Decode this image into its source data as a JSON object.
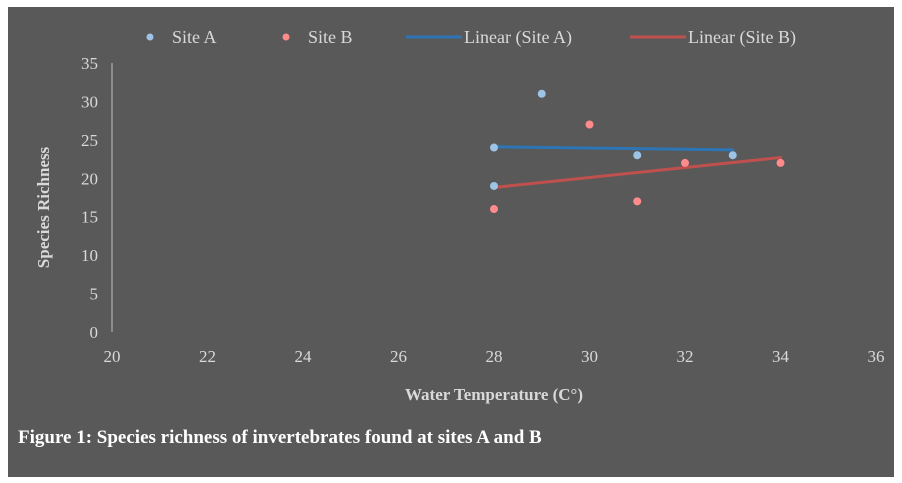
{
  "caption": "Figure 1: Species richness of invertebrates found at sites A and B",
  "chart_data": {
    "type": "scatter",
    "xlabel": "Water Temperature (C°)",
    "ylabel": "Species Richness",
    "xlim": [
      20,
      36
    ],
    "ylim": [
      0,
      35
    ],
    "x_ticks": [
      20,
      22,
      24,
      26,
      28,
      30,
      32,
      34,
      36
    ],
    "y_ticks": [
      0,
      5,
      10,
      15,
      20,
      25,
      30,
      35
    ],
    "grid": false,
    "legend_position": "top",
    "series": [
      {
        "name": "Site A",
        "color": "#9dc3e6",
        "points": [
          [
            28,
            24
          ],
          [
            28,
            19
          ],
          [
            29,
            31
          ],
          [
            31,
            23
          ],
          [
            33,
            23
          ]
        ]
      },
      {
        "name": "Site B",
        "color": "#ff8b8b",
        "points": [
          [
            28,
            16
          ],
          [
            30,
            27
          ],
          [
            31,
            17
          ],
          [
            32,
            22
          ],
          [
            34,
            22
          ]
        ]
      }
    ],
    "trendlines": [
      {
        "name": "Linear (Site A)",
        "color": "#2e75b6",
        "x": [
          28,
          33
        ],
        "y": [
          24.1,
          23.7
        ]
      },
      {
        "name": "Linear (Site B)",
        "color": "#c0504d",
        "x": [
          28,
          34
        ],
        "y": [
          18.8,
          22.7
        ]
      }
    ]
  }
}
